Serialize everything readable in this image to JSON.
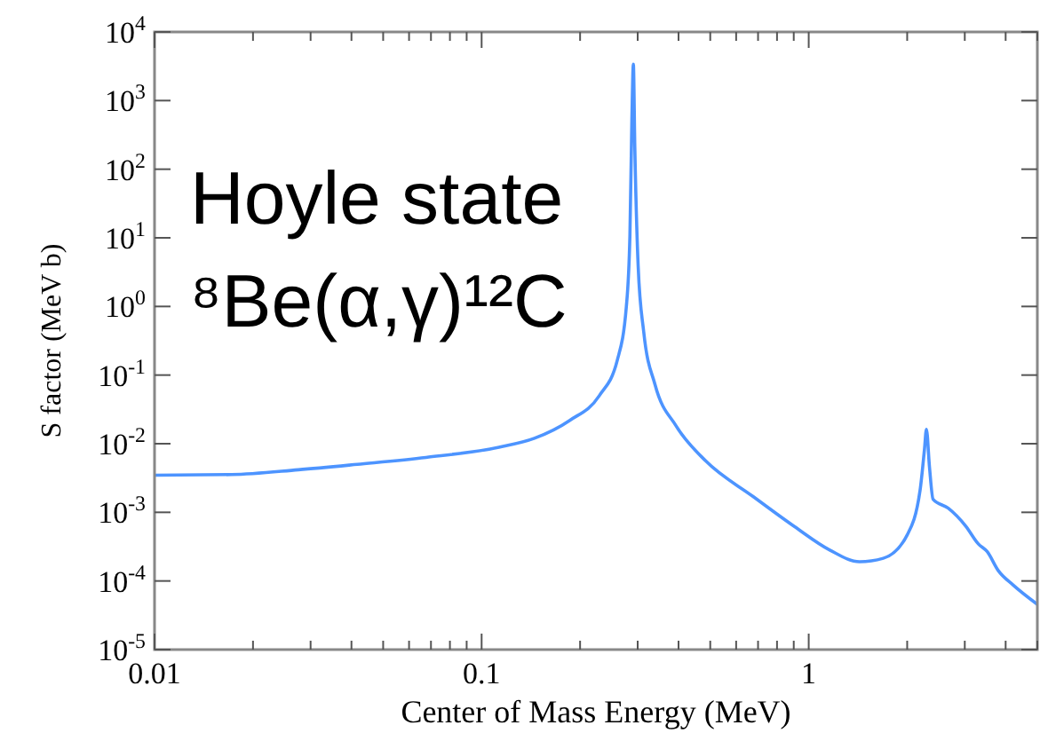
{
  "chart_data": {
    "type": "line",
    "xlabel": "Center of Mass Energy (MeV)",
    "ylabel": "S factor (MeV b)",
    "log": "xy",
    "grid": false,
    "marker": "none",
    "line_style": "solid",
    "xlim": [
      0.01,
      5
    ],
    "ylim": [
      1e-05,
      10000
    ],
    "xticks": [
      0.01,
      {
        "value": 0.02,
        "label": null
      },
      {
        "value": 0.03,
        "label": null
      },
      {
        "value": 0.04,
        "label": null
      },
      {
        "value": 0.05,
        "label": null
      },
      {
        "value": 0.06,
        "label": null
      },
      {
        "value": 0.07,
        "label": null
      },
      {
        "value": 0.08,
        "label": null
      },
      {
        "value": 0.09,
        "label": null
      },
      0.1,
      {
        "value": 0.2,
        "label": null
      },
      {
        "value": 0.3,
        "label": null
      },
      {
        "value": 0.4,
        "label": null
      },
      {
        "value": 0.5,
        "label": null
      },
      {
        "value": 0.6,
        "label": null
      },
      {
        "value": 0.7,
        "label": null
      },
      {
        "value": 0.8,
        "label": null
      },
      {
        "value": 0.9,
        "label": null
      },
      1,
      {
        "value": 2,
        "label": null
      },
      {
        "value": 3,
        "label": null
      },
      {
        "value": 4,
        "label": null
      },
      {
        "value": 5,
        "label": null
      }
    ],
    "yticks": [
      {
        "value": 1e-05,
        "label": "10$^{-5}$"
      },
      {
        "value": 0.0001,
        "label": "10$^{-4}$"
      },
      {
        "value": 0.001,
        "label": "10$^{-3}$"
      },
      {
        "value": 0.01,
        "label": "10$^{-2}$"
      },
      {
        "value": 0.1,
        "label": "10$^{-1}$"
      },
      {
        "value": 1,
        "label": "10$^{0}$"
      },
      {
        "value": 10,
        "label": "10$^{1}$"
      },
      {
        "value": 100,
        "label": "10$^{2}$"
      },
      {
        "value": 1000,
        "label": "10$^{3}$"
      },
      {
        "value": 10000,
        "label": "10$^{4}$"
      }
    ],
    "annotations": [
      "Hoyle state",
      "⁸Be(α,γ)¹²C"
    ],
    "x": [
      0.01,
      0.0172,
      0.0275,
      0.0417,
      0.0676,
      0.113,
      0.145,
      0.186,
      0.229,
      0.26,
      0.277,
      0.284,
      0.288,
      0.291,
      0.294,
      0.301,
      0.313,
      0.339,
      0.393,
      0.484,
      0.676,
      0.906,
      1.16,
      1.43,
      1.69,
      2.0,
      2.19,
      2.26,
      2.29,
      2.34,
      2.4,
      2.67,
      3.02,
      3.3,
      3.51,
      3.8,
      4.22,
      5.0
    ],
    "series": [
      {
        "color": "#4d94ff",
        "values": [
          0.00347,
          0.00355,
          0.00417,
          0.00501,
          0.00631,
          0.0089,
          0.012,
          0.0219,
          0.0501,
          0.166,
          1.0,
          10.7,
          537,
          3390,
          209,
          3.89,
          0.427,
          0.0724,
          0.0182,
          0.00562,
          0.0017,
          0.000617,
          0.000282,
          0.000191,
          0.000214,
          0.000468,
          0.00209,
          0.00851,
          0.0162,
          0.00457,
          0.00155,
          0.00115,
          0.000631,
          0.000347,
          0.000269,
          0.000141,
          8.71e-05,
          4.57e-05
        ]
      }
    ]
  }
}
